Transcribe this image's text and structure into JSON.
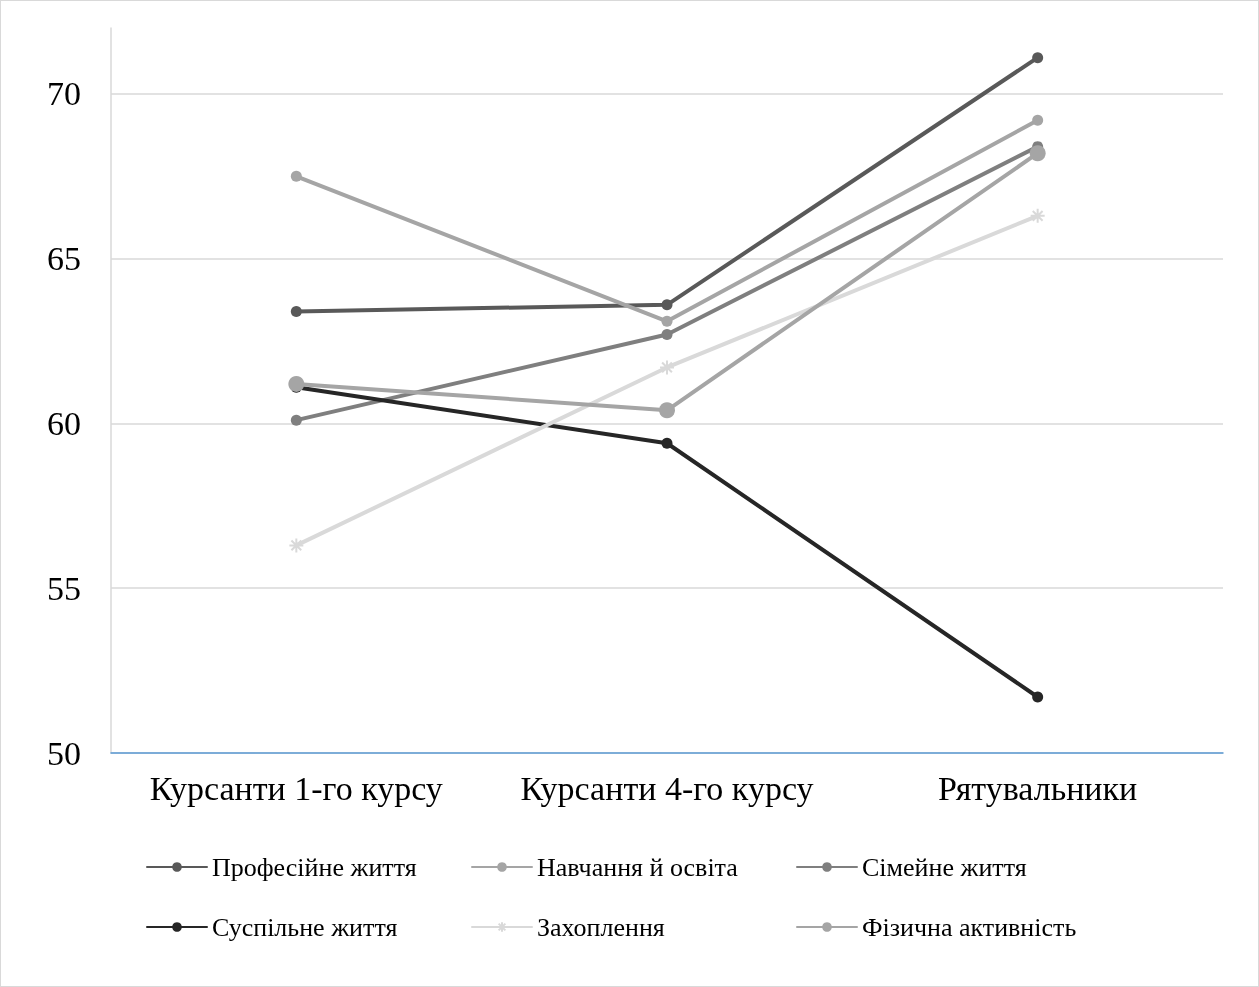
{
  "chart_data": {
    "type": "line",
    "categories": [
      "Курсанти 1-го курсу",
      "Курсанти 4-го курсу",
      "Рятувальники"
    ],
    "series": [
      {
        "name": "Професійне життя",
        "color": "#595959",
        "marker": "circle",
        "values": [
          63.4,
          63.6,
          71.1
        ]
      },
      {
        "name": "Навчання й освіта",
        "color": "#a5a5a5",
        "marker": "circle",
        "values": [
          67.5,
          63.1,
          69.2
        ]
      },
      {
        "name": "Сімейне життя",
        "color": "#7f7f7f",
        "marker": "circle",
        "values": [
          60.1,
          62.7,
          68.4
        ]
      },
      {
        "name": "Суспільне життя",
        "color": "#262626",
        "marker": "circle",
        "values": [
          61.1,
          59.4,
          51.7
        ]
      },
      {
        "name": "Захоплення",
        "color": "#d9d9d9",
        "marker": "cross",
        "values": [
          56.3,
          61.7,
          66.3
        ]
      },
      {
        "name": "Фізична активність",
        "color": "#a5a5a5",
        "marker": "circle",
        "values": [
          61.2,
          60.4,
          68.2
        ]
      }
    ],
    "ylim": [
      50,
      72
    ],
    "yticks": [
      50,
      55,
      60,
      65,
      70
    ],
    "grid": "y",
    "legend": "bottom",
    "line_style": "solid"
  }
}
